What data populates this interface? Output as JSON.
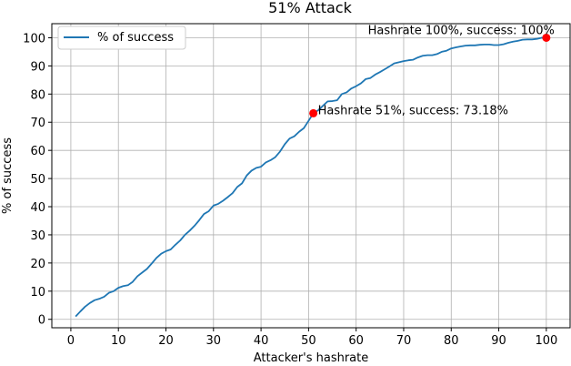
{
  "chart_data": {
    "type": "line",
    "title": "51% Attack",
    "xlabel": "Attacker's hashrate",
    "ylabel": "% of success",
    "xlim": [
      -4,
      105
    ],
    "ylim": [
      -3,
      105
    ],
    "xticks": [
      0,
      10,
      20,
      30,
      40,
      50,
      60,
      70,
      80,
      90,
      100
    ],
    "yticks": [
      0,
      10,
      20,
      30,
      40,
      50,
      60,
      70,
      80,
      90,
      100
    ],
    "grid": true,
    "legend_position": "top-left",
    "series": [
      {
        "name": "% of success",
        "color": "#1f77b4",
        "x": [
          1,
          2,
          3,
          4,
          5,
          6,
          7,
          8,
          9,
          10,
          11,
          12,
          13,
          14,
          15,
          16,
          17,
          18,
          19,
          20,
          21,
          22,
          23,
          24,
          25,
          26,
          27,
          28,
          29,
          30,
          31,
          32,
          33,
          34,
          35,
          36,
          37,
          38,
          39,
          40,
          41,
          42,
          43,
          44,
          45,
          46,
          47,
          48,
          49,
          50,
          51,
          52,
          53,
          54,
          55,
          56,
          57,
          58,
          59,
          60,
          61,
          62,
          63,
          64,
          65,
          66,
          67,
          68,
          69,
          70,
          71,
          72,
          73,
          74,
          75,
          76,
          77,
          78,
          79,
          80,
          81,
          82,
          83,
          84,
          85,
          86,
          87,
          88,
          89,
          90,
          91,
          92,
          93,
          94,
          95,
          96,
          97,
          98,
          99,
          100
        ],
        "values": [
          1.0,
          2.8,
          4.5,
          5.8,
          6.8,
          7.3,
          8.0,
          9.4,
          10.0,
          11.2,
          11.8,
          12.1,
          13.3,
          15.3,
          16.6,
          17.9,
          19.8,
          21.8,
          23.3,
          24.2,
          24.8,
          26.5,
          28.0,
          30.0,
          31.5,
          33.2,
          35.2,
          37.4,
          38.4,
          40.4,
          41.0,
          42.1,
          43.4,
          44.8,
          47.0,
          48.3,
          51.1,
          52.8,
          53.8,
          54.2,
          55.7,
          56.5,
          57.6,
          59.6,
          62.2,
          64.2,
          65.0,
          66.6,
          67.9,
          70.5,
          73.18,
          74.2,
          75.8,
          77.4,
          77.5,
          77.8,
          80.0,
          80.6,
          82.0,
          82.8,
          83.8,
          85.3,
          85.7,
          86.9,
          87.8,
          88.8,
          89.8,
          90.9,
          91.3,
          91.7,
          92.0,
          92.2,
          93.0,
          93.6,
          93.8,
          93.8,
          94.2,
          95.0,
          95.4,
          96.2,
          96.6,
          96.9,
          97.2,
          97.3,
          97.3,
          97.5,
          97.6,
          97.6,
          97.4,
          97.4,
          97.7,
          98.2,
          98.6,
          98.9,
          99.3,
          99.4,
          99.4,
          99.6,
          100.0,
          100.0
        ]
      }
    ],
    "highlight_points": [
      {
        "x": 51,
        "y": 73.18,
        "label": "Hashrate 51%, success: 73.18%",
        "color": "#ff0000"
      },
      {
        "x": 100,
        "y": 100,
        "label": "Hashrate 100%, success: 100%",
        "color": "#ff0000"
      }
    ]
  }
}
